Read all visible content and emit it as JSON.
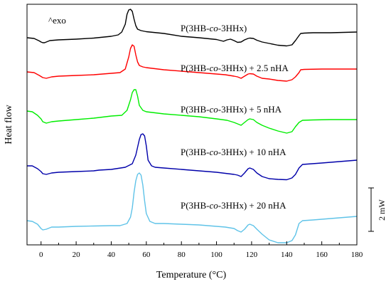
{
  "chart_data": {
    "type": "line",
    "title": "",
    "xlabel": "Temperature (°C)",
    "ylabel": "Heat flow",
    "xlim": [
      -8,
      180
    ],
    "x_ticks": [
      0,
      20,
      40,
      60,
      80,
      100,
      120,
      140,
      160,
      180
    ],
    "y_ticks_shown": false,
    "grid": false,
    "annotations": {
      "exo": "^exo",
      "scale_bar": "2 mW"
    },
    "series": [
      {
        "name": "P(3HB-co-3HHx)",
        "label_parts": [
          "P(3HB-",
          "co",
          "-3HHx)"
        ],
        "color": "#000000",
        "points": [
          [
            -8,
            53
          ],
          [
            -4,
            54
          ],
          [
            -1,
            57.5
          ],
          [
            0,
            59
          ],
          [
            1,
            60
          ],
          [
            2,
            60
          ],
          [
            5,
            57
          ],
          [
            10,
            56
          ],
          [
            20,
            55
          ],
          [
            30,
            53.5
          ],
          [
            40,
            51
          ],
          [
            44,
            49
          ],
          [
            46,
            45
          ],
          [
            48,
            34
          ],
          [
            49,
            20
          ],
          [
            50,
            14
          ],
          [
            51,
            13
          ],
          [
            52,
            16
          ],
          [
            53,
            27
          ],
          [
            54,
            36
          ],
          [
            55,
            41
          ],
          [
            57,
            43
          ],
          [
            60,
            44.5
          ],
          [
            70,
            47
          ],
          [
            80,
            51
          ],
          [
            90,
            53
          ],
          [
            100,
            55.5
          ],
          [
            104,
            58
          ],
          [
            106,
            56
          ],
          [
            108,
            55
          ],
          [
            110,
            57
          ],
          [
            112,
            59.5
          ],
          [
            114,
            59
          ],
          [
            116,
            56
          ],
          [
            118,
            54
          ],
          [
            119,
            53.5
          ],
          [
            121,
            54
          ],
          [
            123,
            56.5
          ],
          [
            126,
            59
          ],
          [
            130,
            61
          ],
          [
            135,
            63.5
          ],
          [
            140,
            64.5
          ],
          [
            143,
            63
          ],
          [
            145,
            57
          ],
          [
            147,
            50
          ],
          [
            148,
            47
          ],
          [
            150,
            46.5
          ],
          [
            155,
            46
          ],
          [
            165,
            46
          ],
          [
            180,
            45
          ]
        ]
      },
      {
        "name": "P(3HB-co-3HHx) + 2.5 nHA",
        "label_parts": [
          "P(3HB-",
          "co",
          "-3HHx) + 2.5 nHA"
        ],
        "color": "#ff0000",
        "points": [
          [
            -8,
            101
          ],
          [
            -4,
            102
          ],
          [
            -1,
            106
          ],
          [
            1,
            109
          ],
          [
            3,
            110
          ],
          [
            6,
            108
          ],
          [
            10,
            107
          ],
          [
            20,
            106
          ],
          [
            30,
            105
          ],
          [
            40,
            103
          ],
          [
            45,
            102
          ],
          [
            48,
            97
          ],
          [
            50,
            80
          ],
          [
            51,
            68
          ],
          [
            52,
            63
          ],
          [
            53,
            65
          ],
          [
            54,
            77
          ],
          [
            55,
            87
          ],
          [
            56,
            92
          ],
          [
            58,
            94
          ],
          [
            60,
            95
          ],
          [
            70,
            98
          ],
          [
            80,
            100
          ],
          [
            90,
            102
          ],
          [
            100,
            104
          ],
          [
            105,
            105
          ],
          [
            110,
            107
          ],
          [
            112,
            108
          ],
          [
            114,
            110
          ],
          [
            116,
            107
          ],
          [
            118,
            104
          ],
          [
            119,
            103.5
          ],
          [
            121,
            104
          ],
          [
            123,
            107
          ],
          [
            126,
            110
          ],
          [
            130,
            111
          ],
          [
            135,
            113
          ],
          [
            140,
            114
          ],
          [
            143,
            112
          ],
          [
            145,
            108
          ],
          [
            147,
            102
          ],
          [
            148,
            98
          ],
          [
            150,
            97.5
          ],
          [
            160,
            97
          ],
          [
            170,
            97
          ],
          [
            180,
            97
          ]
        ]
      },
      {
        "name": "P(3HB-co-3HHx) + 5 nHA",
        "label_parts": [
          "P(3HB-",
          "co",
          "-3HHx) + 5 nHA"
        ],
        "color": "#00ee00",
        "points": [
          [
            -8,
            156
          ],
          [
            -5,
            157
          ],
          [
            -2,
            162
          ],
          [
            0,
            167
          ],
          [
            1,
            171
          ],
          [
            3,
            173
          ],
          [
            6,
            171
          ],
          [
            10,
            170
          ],
          [
            20,
            168
          ],
          [
            30,
            166
          ],
          [
            40,
            163
          ],
          [
            46,
            162
          ],
          [
            49,
            155
          ],
          [
            51,
            140
          ],
          [
            52,
            130
          ],
          [
            53,
            126
          ],
          [
            54,
            126
          ],
          [
            55,
            135
          ],
          [
            56,
            148
          ],
          [
            58,
            155
          ],
          [
            60,
            157
          ],
          [
            70,
            160
          ],
          [
            80,
            162
          ],
          [
            90,
            164
          ],
          [
            100,
            167
          ],
          [
            106,
            169
          ],
          [
            110,
            172
          ],
          [
            112,
            174
          ],
          [
            114,
            176
          ],
          [
            116,
            172
          ],
          [
            118,
            168
          ],
          [
            119,
            167
          ],
          [
            121,
            168
          ],
          [
            123,
            172
          ],
          [
            126,
            176
          ],
          [
            130,
            180
          ],
          [
            135,
            184
          ],
          [
            140,
            187
          ],
          [
            143,
            185
          ],
          [
            145,
            178
          ],
          [
            147,
            172
          ],
          [
            149,
            169
          ],
          [
            155,
            168.5
          ],
          [
            165,
            168
          ],
          [
            180,
            168
          ]
        ]
      },
      {
        "name": "P(3HB-co-3HHx) + 10 nHA",
        "label_parts": [
          "P(3HB-",
          "co",
          "-3HHx) + 10 nHA"
        ],
        "color": "#0000aa",
        "points": [
          [
            -8,
            233
          ],
          [
            -5,
            233
          ],
          [
            -2,
            237
          ],
          [
            0,
            241
          ],
          [
            1,
            244
          ],
          [
            3,
            245
          ],
          [
            6,
            243
          ],
          [
            10,
            242
          ],
          [
            20,
            241
          ],
          [
            30,
            240
          ],
          [
            33,
            239
          ],
          [
            40,
            238
          ],
          [
            48,
            235
          ],
          [
            52,
            230
          ],
          [
            54,
            218
          ],
          [
            56,
            196
          ],
          [
            57,
            189
          ],
          [
            58,
            188
          ],
          [
            59,
            191
          ],
          [
            60,
            205
          ],
          [
            61,
            225
          ],
          [
            63,
            233
          ],
          [
            65,
            235
          ],
          [
            70,
            236
          ],
          [
            80,
            238
          ],
          [
            90,
            240
          ],
          [
            100,
            242
          ],
          [
            110,
            245
          ],
          [
            112,
            246
          ],
          [
            114,
            248
          ],
          [
            116,
            243
          ],
          [
            118,
            237
          ],
          [
            119,
            236
          ],
          [
            121,
            238
          ],
          [
            123,
            243
          ],
          [
            126,
            248
          ],
          [
            130,
            251
          ],
          [
            135,
            252
          ],
          [
            140,
            252.5
          ],
          [
            143,
            250
          ],
          [
            145,
            245
          ],
          [
            147,
            236
          ],
          [
            149,
            231
          ],
          [
            160,
            229
          ],
          [
            170,
            227
          ],
          [
            180,
            225
          ]
        ]
      },
      {
        "name": "P(3HB-co-3HHx) + 20 nHA",
        "label_parts": [
          "P(3HB-",
          "co",
          "-3HHx) + 20 nHA"
        ],
        "color": "#5fc3e8",
        "points": [
          [
            -8,
            310
          ],
          [
            -5,
            311
          ],
          [
            -2,
            315
          ],
          [
            0,
            321
          ],
          [
            1,
            323
          ],
          [
            3,
            322
          ],
          [
            6,
            319
          ],
          [
            10,
            319
          ],
          [
            20,
            318
          ],
          [
            30,
            317.5
          ],
          [
            40,
            317
          ],
          [
            45,
            317
          ],
          [
            49,
            314
          ],
          [
            51,
            305
          ],
          [
            52,
            292
          ],
          [
            53,
            270
          ],
          [
            54,
            254
          ],
          [
            55,
            245
          ],
          [
            56,
            243
          ],
          [
            57,
            246
          ],
          [
            58,
            260
          ],
          [
            59,
            282
          ],
          [
            60,
            300
          ],
          [
            62,
            311
          ],
          [
            65,
            314
          ],
          [
            70,
            314
          ],
          [
            80,
            315
          ],
          [
            90,
            316
          ],
          [
            100,
            318
          ],
          [
            105,
            319
          ],
          [
            110,
            321
          ],
          [
            112,
            324
          ],
          [
            114,
            326
          ],
          [
            116,
            322
          ],
          [
            118,
            316
          ],
          [
            119,
            315
          ],
          [
            121,
            317
          ],
          [
            123,
            322
          ],
          [
            126,
            329
          ],
          [
            130,
            337
          ],
          [
            135,
            341
          ],
          [
            140,
            341
          ],
          [
            143,
            338
          ],
          [
            145,
            330
          ],
          [
            147,
            314
          ],
          [
            149,
            310
          ],
          [
            155,
            309
          ],
          [
            170,
            306
          ],
          [
            180,
            304
          ]
        ]
      }
    ]
  }
}
